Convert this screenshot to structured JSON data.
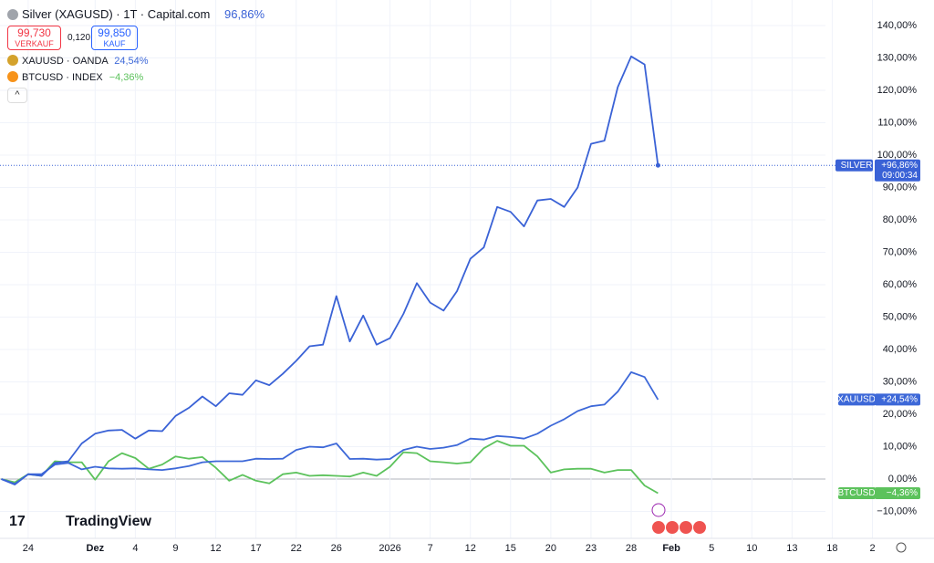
{
  "header": {
    "title": "Silver (XAGUSD) · 1T · Capital.com",
    "change": "96,86%",
    "sell_price": "99,730",
    "sell_label": "VERKAUF",
    "spread": "0,120",
    "buy_price": "99,850",
    "buy_label": "KAUF",
    "compare": [
      {
        "name": "XAUUSD · OANDA",
        "change": "24,54%"
      },
      {
        "name": "BTCUSD · INDEX",
        "change": "−4,36%"
      }
    ],
    "logo": "TradingView"
  },
  "price_tags": [
    {
      "label": "+96,86%",
      "time": "09:00:34"
    },
    {
      "label": "+24,54%"
    },
    {
      "label": "−4,36%"
    }
  ],
  "chart_data": {
    "type": "line",
    "x": [
      -2,
      -1,
      0,
      1,
      2,
      3,
      4,
      5,
      6,
      7,
      8,
      9,
      10,
      11,
      12,
      13,
      14,
      15,
      16,
      17,
      18,
      19,
      20,
      21,
      22,
      23,
      24,
      25,
      26,
      27,
      28,
      29,
      30,
      31,
      32,
      33,
      34,
      35,
      36,
      37,
      38,
      39,
      40,
      41,
      42,
      43,
      44,
      45,
      46,
      47
    ],
    "series": [
      {
        "name": "SILVER",
        "color": "#3a62d6",
        "values": [
          0,
          -1.7,
          1.5,
          1,
          5,
          5.5,
          11,
          14,
          15,
          15.2,
          12.5,
          15,
          14.8,
          19.5,
          22,
          25.5,
          22.5,
          26.5,
          26,
          30.5,
          29,
          32.5,
          36.5,
          41,
          41.5,
          56.5,
          42.5,
          50.5,
          41.5,
          43.5,
          51,
          60.5,
          54.5,
          52,
          58,
          68,
          71.5,
          84,
          82.5,
          78,
          86,
          86.5,
          84,
          90,
          103.5,
          104.5,
          121,
          130.5,
          128,
          96.86
        ]
      },
      {
        "name": "XAUUSD",
        "color": "#3d68d8",
        "values": [
          0,
          -1.5,
          1.5,
          1.5,
          4.5,
          5,
          3,
          3.8,
          3.3,
          3.2,
          3.3,
          3,
          2.8,
          3.3,
          4,
          5.2,
          5.5,
          5.5,
          5.5,
          6.3,
          6.2,
          6.3,
          9,
          10,
          9.8,
          11,
          6.2,
          6.3,
          6,
          6.2,
          9,
          10,
          9.3,
          9.7,
          10.5,
          12.5,
          12.2,
          13.3,
          13,
          12.5,
          14,
          16.5,
          18.5,
          21,
          22.5,
          23,
          27,
          33,
          31.5,
          24.54
        ]
      },
      {
        "name": "BTCUSD",
        "color": "#5cc25c",
        "values": [
          0,
          -1,
          1.5,
          1,
          5.5,
          5.2,
          5.2,
          -0.2,
          5.5,
          8,
          6.5,
          3.2,
          4.5,
          7,
          6.3,
          6.8,
          3.5,
          -0.5,
          1.3,
          -0.5,
          -1.3,
          1.5,
          2,
          1,
          1.2,
          1,
          0.8,
          2,
          1,
          3.8,
          8.3,
          8,
          5.5,
          5.2,
          4.8,
          5.2,
          9.5,
          11.8,
          10.3,
          10.3,
          7,
          2,
          3,
          3.2,
          3.2,
          2,
          2.8,
          2.8,
          -2,
          -4.36
        ]
      }
    ],
    "xlim": [
      -2.1,
      66.3
    ],
    "xticks": [
      {
        "value": 0,
        "label": "24"
      },
      {
        "value": 5,
        "label": "Dez"
      },
      {
        "value": 8,
        "label": "4"
      },
      {
        "value": 11,
        "label": "9"
      },
      {
        "value": 14,
        "label": "12"
      },
      {
        "value": 17,
        "label": "17"
      },
      {
        "value": 20,
        "label": "22"
      },
      {
        "value": 23,
        "label": "26"
      },
      {
        "value": 27,
        "label": "2026"
      },
      {
        "value": 30,
        "label": "7"
      },
      {
        "value": 33,
        "label": "12"
      },
      {
        "value": 36,
        "label": "15"
      },
      {
        "value": 39,
        "label": "20"
      },
      {
        "value": 42,
        "label": "23"
      },
      {
        "value": 45,
        "label": "28"
      },
      {
        "value": 48,
        "label": "Feb"
      },
      {
        "value": 51,
        "label": "5"
      },
      {
        "value": 54,
        "label": "10"
      },
      {
        "value": 57,
        "label": "13"
      },
      {
        "value": 60,
        "label": "18"
      },
      {
        "value": 63,
        "label": "2"
      }
    ],
    "ylim": [
      -18.3,
      147.9
    ],
    "yticks": [
      {
        "value": -10,
        "label": "−10,00%"
      },
      {
        "value": 0,
        "label": "0,00%"
      },
      {
        "value": 10,
        "label": "10,00%"
      },
      {
        "value": 20,
        "label": "20,00%"
      },
      {
        "value": 30,
        "label": "30,00%"
      },
      {
        "value": 40,
        "label": "40,00%"
      },
      {
        "value": 50,
        "label": "50,00%"
      },
      {
        "value": 60,
        "label": "60,00%"
      },
      {
        "value": 70,
        "label": "70,00%"
      },
      {
        "value": 80,
        "label": "80,00%"
      },
      {
        "value": 90,
        "label": "90,00%"
      },
      {
        "value": 100,
        "label": "100,00%"
      },
      {
        "value": 110,
        "label": "110,00%"
      },
      {
        "value": 120,
        "label": "120,00%"
      },
      {
        "value": 130,
        "label": "130,00%"
      },
      {
        "value": 140,
        "label": "140,00%"
      }
    ],
    "grid": true
  }
}
